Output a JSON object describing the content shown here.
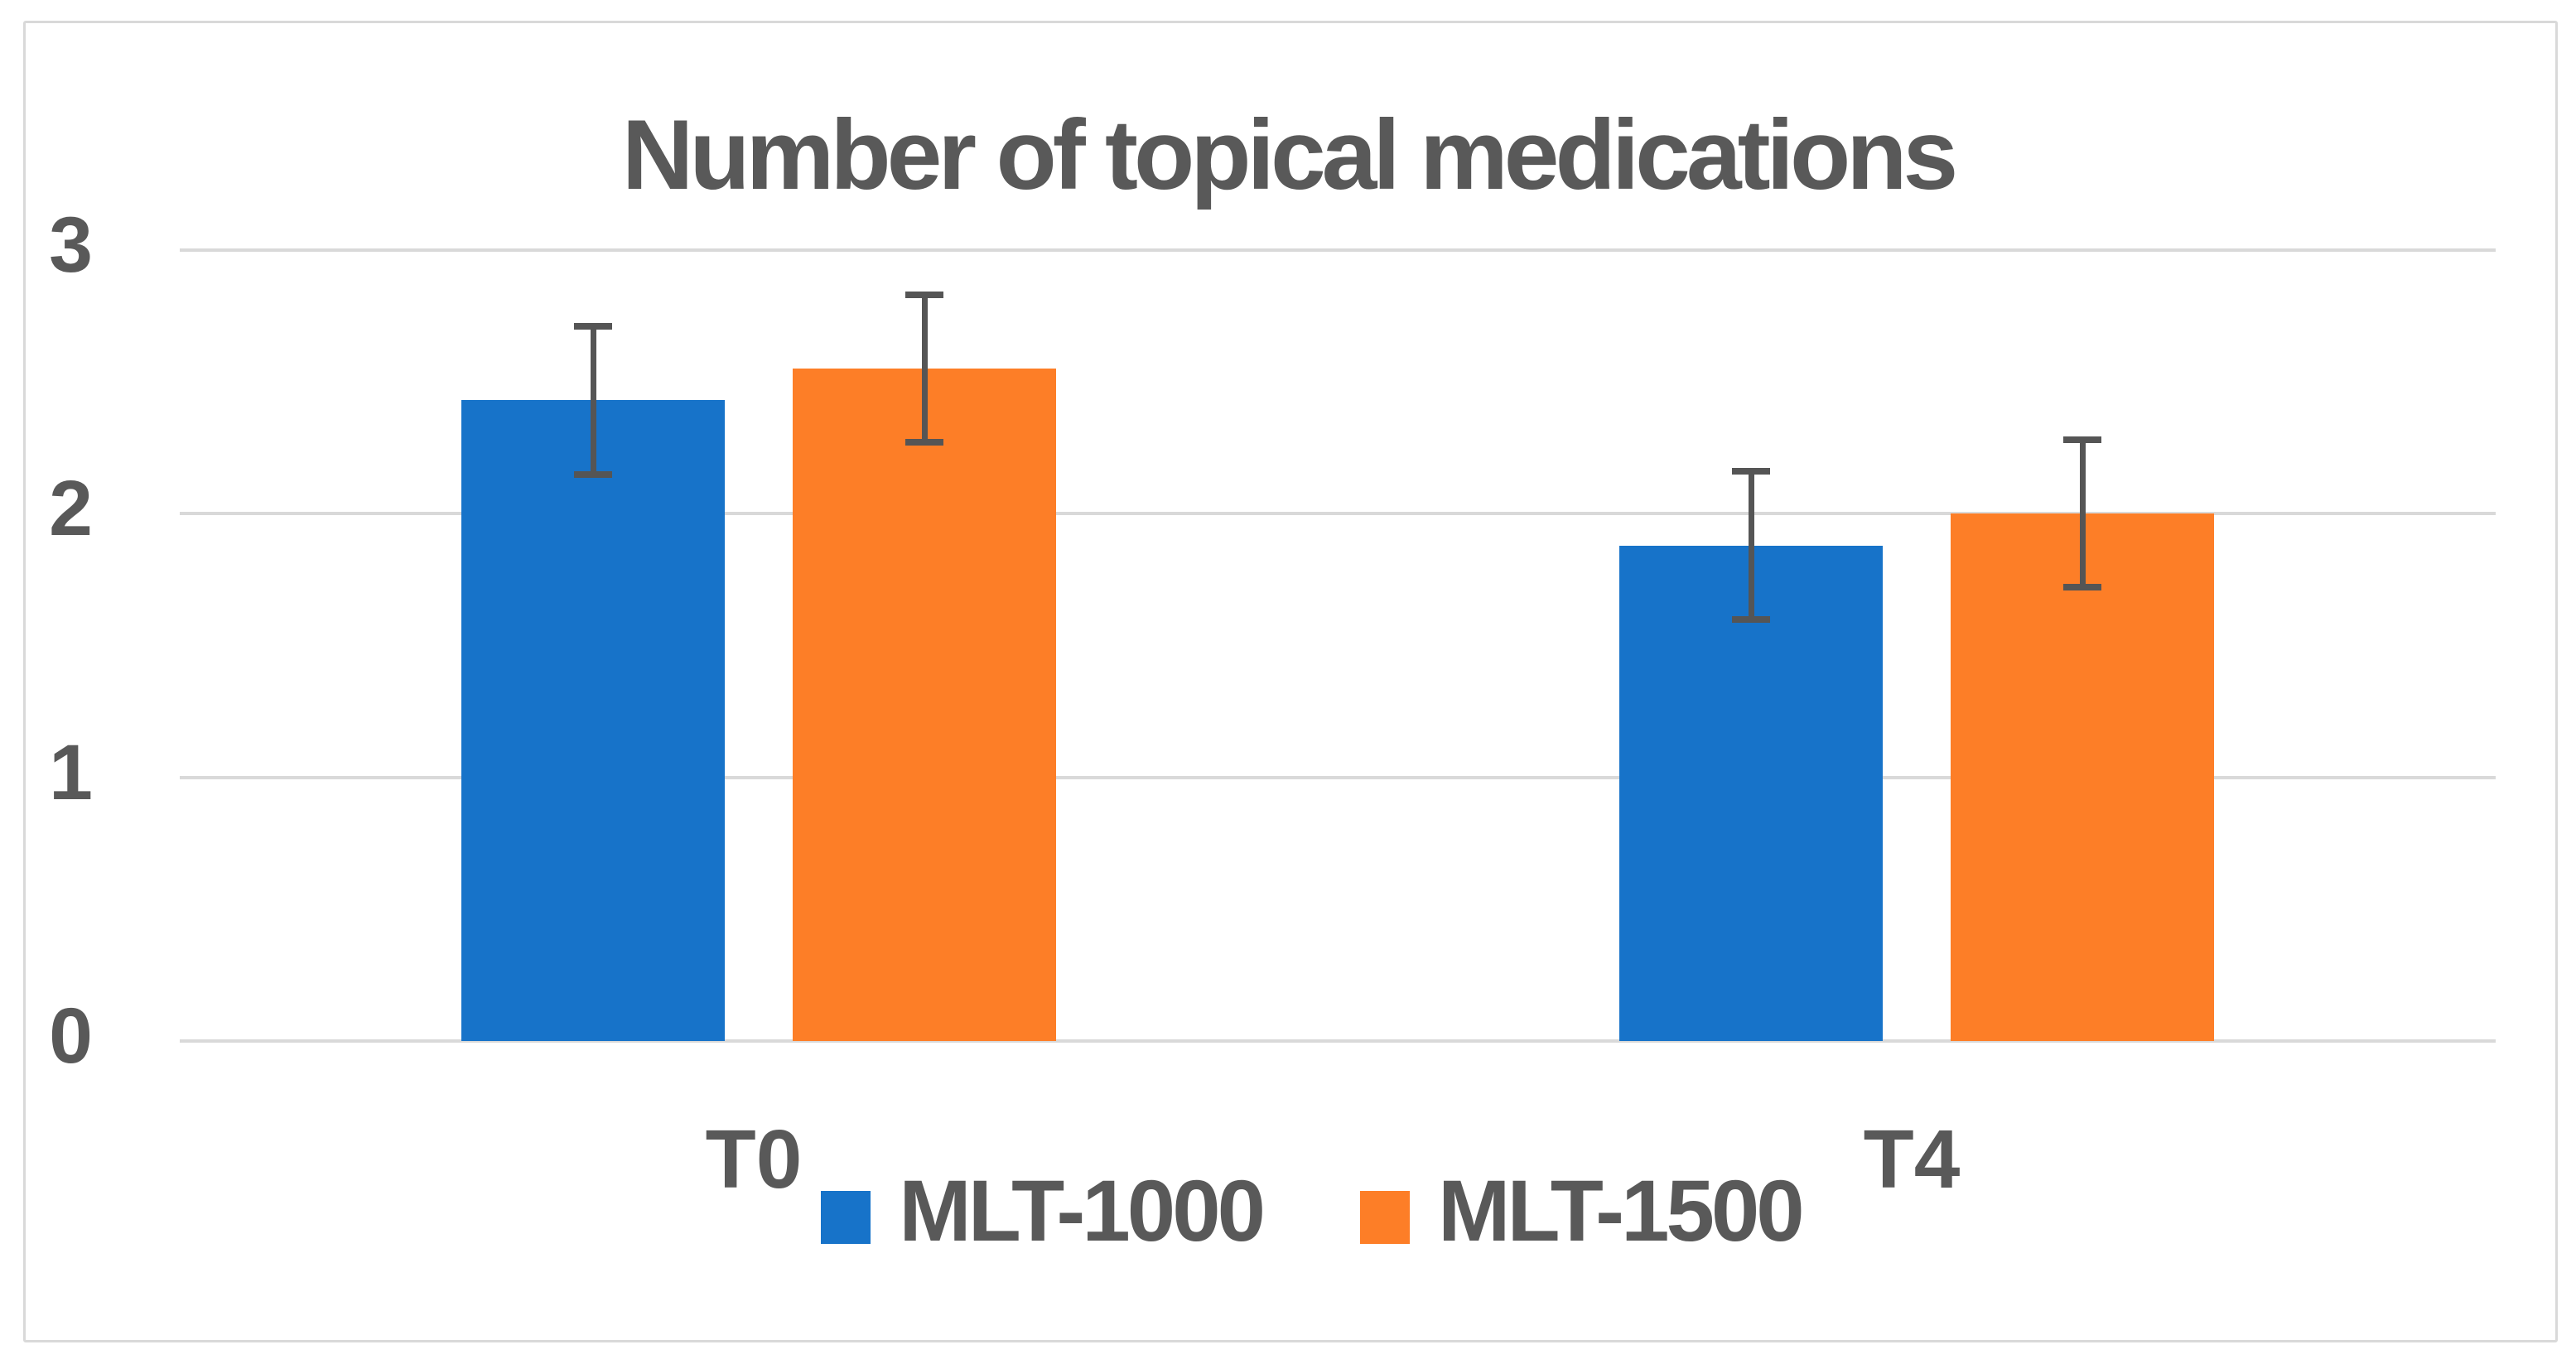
{
  "chart_data": {
    "type": "bar",
    "title": "Number of topical medications",
    "categories": [
      "T0",
      "T4"
    ],
    "series": [
      {
        "name": "MLT-1000",
        "color": "#1773c9",
        "values": [
          2.43,
          1.88
        ],
        "error_bars": [
          0.28,
          0.28
        ]
      },
      {
        "name": "MLT-1500",
        "color": "#fd7e27",
        "values": [
          2.55,
          2.0
        ],
        "error_bars": [
          0.28,
          0.28
        ]
      }
    ],
    "ylim": [
      0,
      3
    ],
    "yticks": [
      0,
      1,
      2,
      3
    ],
    "grid": true,
    "legend_position": "bottom",
    "colors": {
      "text": "#595959",
      "gridline": "#d9d9d9",
      "border": "#d9d9d9",
      "error_bar": "#555555",
      "background": "#ffffff"
    }
  }
}
